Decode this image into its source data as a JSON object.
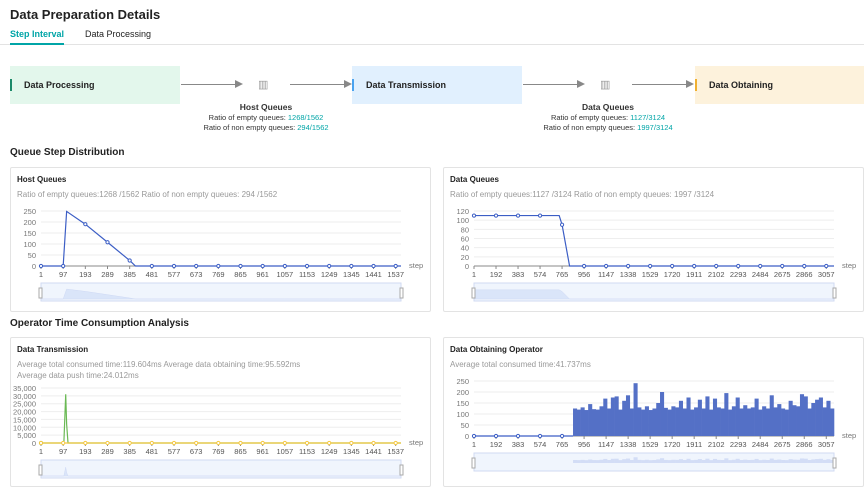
{
  "page": {
    "title": "Data Preparation Details"
  },
  "tabs": [
    {
      "label": "Step Interval",
      "active": true
    },
    {
      "label": "Data Processing",
      "active": false
    }
  ],
  "pipeline": {
    "stages": [
      "Data Processing",
      "Data Transmission",
      "Data Obtaining"
    ],
    "host_queues": {
      "title": "Host Queues",
      "empty_label": "Ratio of empty queues: ",
      "empty_value": "1268/1562",
      "nonempty_label": "Ratio of non empty queues: ",
      "nonempty_value": "294/1562",
      "icon": "queue-icon"
    },
    "data_queues": {
      "title": "Data Queues",
      "empty_label": "Ratio of empty queues: ",
      "empty_value": "1127/3124",
      "nonempty_label": "Ratio of non empty queues: ",
      "nonempty_value": "1997/3124",
      "icon": "queue-icon"
    }
  },
  "sections": {
    "queue": "Queue Step Distribution",
    "operator": "Operator Time Consumption Analysis"
  },
  "colors": {
    "accent": "#00a5a7",
    "line": "#3c5ec5",
    "green": "#6ab954",
    "yellow": "#f5c842"
  },
  "chart_data": [
    {
      "type": "line",
      "title": "Host Queues",
      "subtitle": [
        "Ratio of empty queues:1268 /1562   Ratio of non empty queues: 294 /1562"
      ],
      "xlabel": "step",
      "xlim": [
        1,
        1560
      ],
      "ylim": [
        0,
        250
      ],
      "yticks": [
        "0",
        "50",
        "100",
        "150",
        "200",
        "250"
      ],
      "xticks": [
        "1",
        "97",
        "193",
        "289",
        "385",
        "481",
        "577",
        "673",
        "769",
        "865",
        "961",
        "1057",
        "1153",
        "1249",
        "1345",
        "1441",
        "1537"
      ],
      "series": [
        {
          "color": "#3c5ec5",
          "x": [
            1,
            97,
            112,
            193,
            289,
            385,
            410,
            481,
            577,
            673,
            769,
            865,
            961,
            1057,
            1153,
            1249,
            1345,
            1441,
            1537,
            1560
          ],
          "y": [
            0,
            0,
            248,
            190,
            108,
            25,
            0,
            0,
            0,
            0,
            0,
            0,
            0,
            0,
            0,
            0,
            0,
            0,
            0,
            0
          ]
        }
      ]
    },
    {
      "type": "line",
      "title": "Data Queues",
      "subtitle": [
        "Ratio of empty queues:1127 /3124   Ratio of non empty queues: 1997 /3124"
      ],
      "xlabel": "step",
      "xlim": [
        1,
        3124
      ],
      "ylim": [
        0,
        120
      ],
      "yticks": [
        "0",
        "20",
        "40",
        "60",
        "80",
        "100",
        "120"
      ],
      "xticks": [
        "1",
        "192",
        "383",
        "574",
        "765",
        "956",
        "1147",
        "1338",
        "1529",
        "1720",
        "1911",
        "2102",
        "2293",
        "2484",
        "2675",
        "2866",
        "3057"
      ],
      "series": [
        {
          "color": "#3c5ec5",
          "x": [
            1,
            192,
            383,
            574,
            740,
            765,
            830,
            956,
            1147,
            1338,
            1529,
            1720,
            1911,
            2102,
            2293,
            2484,
            2675,
            2866,
            3057,
            3124
          ],
          "y": [
            110,
            110,
            110,
            110,
            110,
            90,
            0,
            0,
            0,
            0,
            0,
            0,
            0,
            0,
            0,
            0,
            0,
            0,
            0,
            0
          ]
        }
      ]
    },
    {
      "type": "line",
      "title": "Data Transmission",
      "subtitle": [
        "Average total consumed time:119.604ms   Average data obtaining time:95.592ms",
        "Average data push time:24.012ms"
      ],
      "xlabel": "step",
      "xlim": [
        1,
        1560
      ],
      "ylim": [
        0,
        35000
      ],
      "yticks": [
        "0",
        "5,000",
        "10,000",
        "15,000",
        "20,000",
        "25,000",
        "30,000",
        "35,000"
      ],
      "xticks": [
        "1",
        "97",
        "193",
        "289",
        "385",
        "481",
        "577",
        "673",
        "769",
        "865",
        "961",
        "1057",
        "1153",
        "1249",
        "1345",
        "1441",
        "1537"
      ],
      "series": [
        {
          "color": "#6ab954",
          "x": [
            1,
            100,
            108,
            112,
            118,
            1560
          ],
          "y": [
            0,
            0,
            31000,
            12000,
            0,
            0
          ]
        },
        {
          "color": "#f5c842",
          "x": [
            1,
            97,
            193,
            289,
            385,
            481,
            577,
            673,
            769,
            865,
            961,
            1057,
            1153,
            1249,
            1345,
            1441,
            1537,
            1560
          ],
          "y": [
            0,
            0,
            0,
            0,
            0,
            0,
            0,
            0,
            0,
            0,
            0,
            0,
            0,
            0,
            0,
            0,
            0,
            0
          ]
        }
      ]
    },
    {
      "type": "bar",
      "title": "Data Obtaining Operator",
      "subtitle": [
        "Average total consumed time:41.737ms"
      ],
      "xlabel": "step",
      "xlim": [
        1,
        3124
      ],
      "ylim": [
        0,
        250
      ],
      "yticks": [
        "0",
        "50",
        "100",
        "150",
        "200",
        "250"
      ],
      "xticks": [
        "1",
        "192",
        "383",
        "574",
        "765",
        "956",
        "1147",
        "1338",
        "1529",
        "1720",
        "1911",
        "2102",
        "2293",
        "2484",
        "2675",
        "2866",
        "3057"
      ],
      "series": [
        {
          "color": "#5470c6",
          "x_start": 860,
          "x_end": 3124,
          "y": [
            125,
            120,
            130,
            118,
            145,
            122,
            120,
            135,
            170,
            125,
            175,
            180,
            120,
            160,
            185,
            125,
            240,
            130,
            120,
            135,
            118,
            125,
            150,
            200,
            128,
            120,
            135,
            130,
            160,
            125,
            175,
            120,
            130,
            165,
            125,
            180,
            120,
            170,
            130,
            125,
            195,
            120,
            135,
            175,
            125,
            140,
            125,
            130,
            170,
            120,
            135,
            125,
            185,
            130,
            145,
            125,
            120,
            160,
            140,
            135,
            190,
            180,
            125,
            150,
            165,
            175,
            130,
            160,
            125
          ]
        },
        {
          "color": "#3c5ec5",
          "x": [
            1,
            192,
            383,
            574,
            765,
            860
          ],
          "y": [
            0,
            0,
            0,
            0,
            0,
            0
          ]
        }
      ]
    }
  ]
}
